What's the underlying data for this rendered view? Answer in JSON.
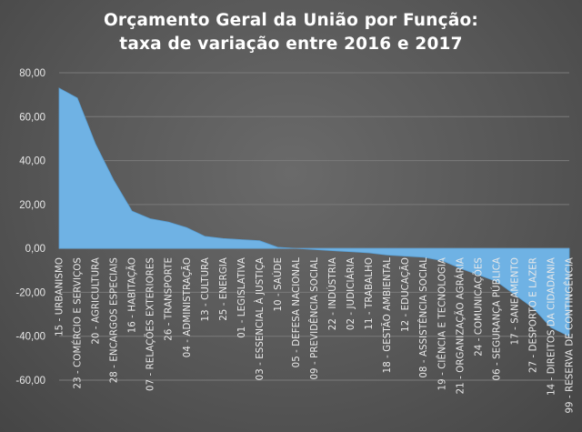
{
  "title_lines": [
    "Orçamento Geral da União por Função:",
    "taxa de variação entre 2016 e 2017"
  ],
  "chart_data": {
    "type": "area",
    "title": "Orçamento Geral da União por Função: taxa de variação entre 2016 e 2017",
    "xlabel": "",
    "ylabel": "",
    "ylim": [
      -60,
      80
    ],
    "yticks": [
      -60,
      -40,
      -20,
      0,
      20,
      40,
      60,
      80
    ],
    "ytick_labels": [
      "-60,00",
      "-40,00",
      "-20,00",
      "0,00",
      "20,00",
      "40,00",
      "60,00",
      "80,00"
    ],
    "grid": true,
    "legend": "none",
    "fill_color": "#6fb2e4",
    "categories": [
      "15 - URBANISMO",
      "23 - COMÉRCIO E SERVIÇOS",
      "20 - AGRICULTURA",
      "28 - ENCARGOS ESPECIAIS",
      "16 - HABITAÇÃO",
      "07 - RELAÇÕES EXTERIORES",
      "26 - TRANSPORTE",
      "04 - ADMINISTRAÇÃO",
      "13 - CULTURA",
      "25 - ENERGIA",
      "01 - LEGISLATIVA",
      "03 - ESSENCIAL À JUSTIÇA",
      "10 - SAÚDE",
      "05 - DEFESA NACIONAL",
      "09 - PREVIDÊNCIA SOCIAL",
      "22 - INDÚSTRIA",
      "02 - JUDICIÁRIA",
      "11 - TRABALHO",
      "18 - GESTÃO AMBIENTAL",
      "12 - EDUCAÇÃO",
      "08 - ASSISTÊNCIA SOCIAL",
      "19 - CIÊNCIA E TECNOLOGIA",
      "21 - ORGANIZAÇÃO AGRÁRIA",
      "24 - COMUNICAÇÕES",
      "06 - SEGURANÇA PÚBLICA",
      "17 - SANEAMENTO",
      "27 - DESPORTO E LAZER",
      "14 - DIREITOS DA CIDADANIA",
      "99 - RESERVA DE CONTINGÊNCIA"
    ],
    "values": [
      73,
      68.5,
      47.5,
      31,
      17,
      13.5,
      12,
      9.5,
      5.5,
      4.5,
      4,
      3.5,
      0.5,
      0,
      -0.5,
      -1,
      -1.5,
      -2,
      -3,
      -3.5,
      -4,
      -5.5,
      -9,
      -12,
      -15,
      -21,
      -27,
      -36,
      -40
    ]
  }
}
